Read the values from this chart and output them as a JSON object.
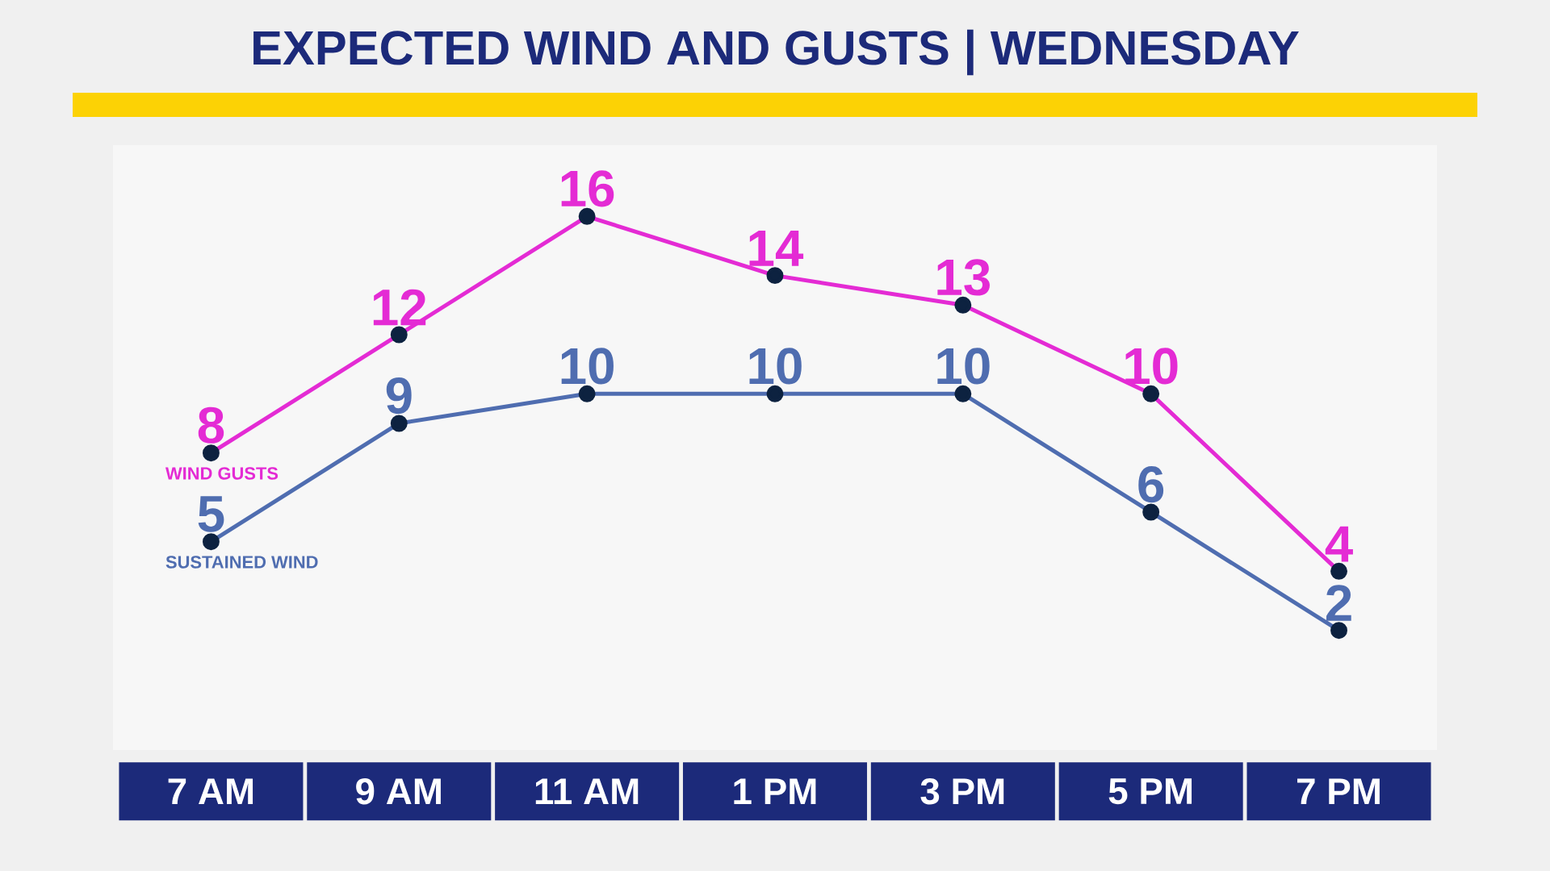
{
  "chart_data": {
    "type": "line",
    "title": "EXPECTED WIND AND GUSTS | WEDNESDAY",
    "categories": [
      "7 AM",
      "9 AM",
      "11 AM",
      "1 PM",
      "3 PM",
      "5 PM",
      "7 PM"
    ],
    "series": [
      {
        "name": "WIND GUSTS",
        "color": "#e42bd4",
        "values": [
          8,
          12,
          16,
          14,
          13,
          10,
          4
        ]
      },
      {
        "name": "SUSTAINED WIND",
        "color": "#4f6db0",
        "values": [
          5,
          9,
          10,
          10,
          10,
          6,
          2
        ]
      }
    ],
    "data_labels": true,
    "marker": "circle",
    "line_style": "solid",
    "tick_labels": "x"
  }
}
